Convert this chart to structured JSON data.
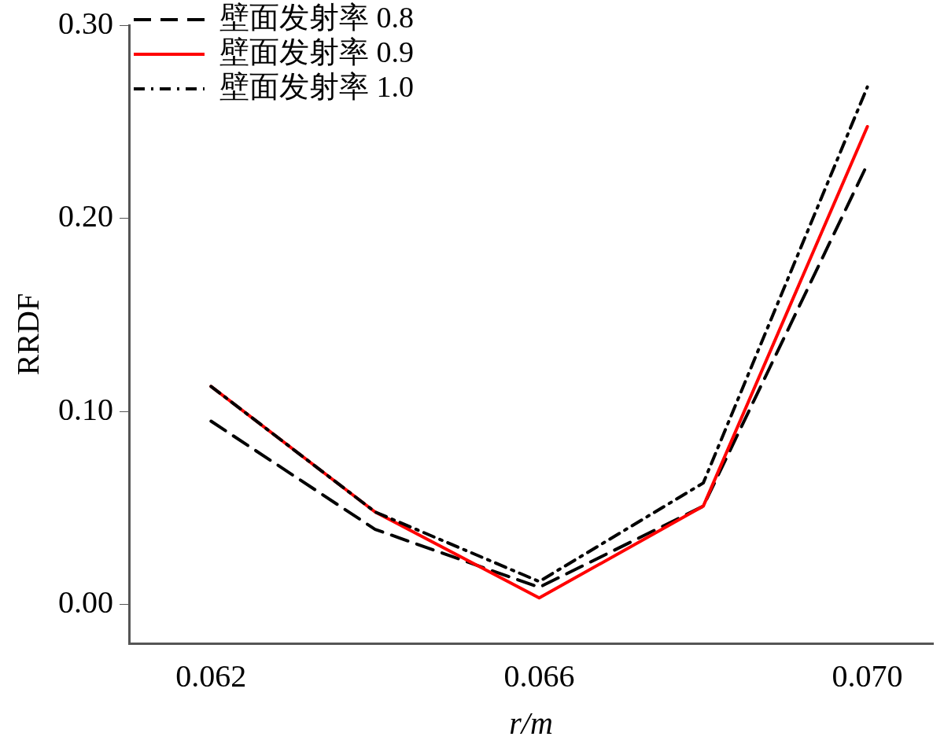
{
  "chart_data": {
    "type": "line",
    "xlabel": "r/m",
    "ylabel": "RRDF",
    "x": [
      0.062,
      0.064,
      0.066,
      0.068,
      0.07
    ],
    "series": [
      {
        "name": "壁面发射率 0.8",
        "color": "#000000",
        "line_style": "dashed",
        "values": [
          0.095,
          0.039,
          0.009,
          0.051,
          0.228
        ]
      },
      {
        "name": "壁面发射率 0.9",
        "color": "#ff0000",
        "line_style": "solid",
        "values": [
          0.113,
          0.048,
          0.0035,
          0.051,
          0.2475
        ]
      },
      {
        "name": "壁面发射率 1.0",
        "color": "#000000",
        "line_style": "dashdot",
        "values": [
          0.113,
          0.048,
          0.012,
          0.063,
          0.268
        ]
      }
    ],
    "xlim": [
      0.061,
      0.0708
    ],
    "xticks": [
      {
        "value": 0.062,
        "label": "0.062"
      },
      {
        "value": 0.066,
        "label": "0.066"
      },
      {
        "value": 0.07,
        "label": "0.070"
      }
    ],
    "ylim": [
      -0.02,
      0.3
    ],
    "yticks": [
      {
        "value": 0,
        "label": "0.00"
      },
      {
        "value": 0.1,
        "label": "0.10"
      },
      {
        "value": 0.2,
        "label": "0.20"
      },
      {
        "value": 0.3,
        "label": "0.30"
      }
    ],
    "grid": false,
    "legend": "top left",
    "marker": "none"
  }
}
